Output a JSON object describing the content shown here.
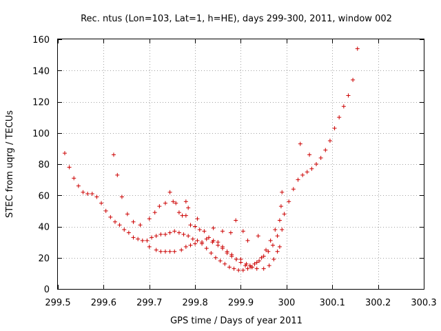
{
  "chart_data": {
    "type": "scatter",
    "title": "Rec. ntus (Lon=103, Lat=1, h=HE), days 299-300, 2011, window 002",
    "xlabel": "GPS time / Days of year 2011",
    "ylabel": "STEC from uqrg / TECUs",
    "xlim": [
      299.5,
      300.3
    ],
    "ylim": [
      0,
      160
    ],
    "xticks": [
      299.5,
      299.6,
      299.7,
      299.8,
      299.9,
      300,
      300.1,
      300.2,
      300.3
    ],
    "xtick_labels": [
      "299.5",
      "299.6",
      "299.7",
      "299.8",
      "299.9",
      "300",
      "300.1",
      "300.2",
      "300.3"
    ],
    "yticks": [
      0,
      20,
      40,
      60,
      80,
      100,
      120,
      140,
      160
    ],
    "ytick_labels": [
      "0",
      "20",
      "40",
      "60",
      "80",
      "100",
      "120",
      "140",
      "160"
    ],
    "grid": true,
    "marker": "+",
    "color": "#cc0000",
    "series": [
      {
        "name": "stec",
        "points": [
          [
            299.515,
            87
          ],
          [
            299.525,
            78
          ],
          [
            299.535,
            71
          ],
          [
            299.545,
            66
          ],
          [
            299.555,
            62
          ],
          [
            299.565,
            61
          ],
          [
            299.575,
            61
          ],
          [
            299.585,
            59
          ],
          [
            299.595,
            55
          ],
          [
            299.605,
            50
          ],
          [
            299.615,
            46
          ],
          [
            299.625,
            43
          ],
          [
            299.635,
            41
          ],
          [
            299.645,
            38
          ],
          [
            299.655,
            36
          ],
          [
            299.665,
            33
          ],
          [
            299.675,
            32
          ],
          [
            299.685,
            31
          ],
          [
            299.695,
            31
          ],
          [
            299.705,
            33
          ],
          [
            299.715,
            34
          ],
          [
            299.725,
            35
          ],
          [
            299.735,
            35
          ],
          [
            299.745,
            36
          ],
          [
            299.755,
            37
          ],
          [
            299.765,
            36
          ],
          [
            299.775,
            35
          ],
          [
            299.785,
            34
          ],
          [
            299.795,
            32
          ],
          [
            299.805,
            31
          ],
          [
            299.815,
            29
          ],
          [
            299.825,
            26
          ],
          [
            299.835,
            23
          ],
          [
            299.845,
            20
          ],
          [
            299.855,
            18
          ],
          [
            299.865,
            16
          ],
          [
            299.875,
            14
          ],
          [
            299.885,
            13
          ],
          [
            299.895,
            12
          ],
          [
            299.905,
            12
          ],
          [
            299.915,
            13
          ],
          [
            299.925,
            14
          ],
          [
            299.935,
            17
          ],
          [
            299.945,
            20
          ],
          [
            299.955,
            25
          ],
          [
            299.965,
            31
          ],
          [
            299.975,
            38
          ],
          [
            299.985,
            44
          ],
          [
            299.995,
            48
          ],
          [
            300.005,
            56
          ],
          [
            300.015,
            64
          ],
          [
            300.025,
            70
          ],
          [
            300.035,
            73
          ],
          [
            300.045,
            75
          ],
          [
            300.055,
            77
          ],
          [
            300.065,
            80
          ],
          [
            300.075,
            84
          ],
          [
            300.085,
            89
          ],
          [
            300.095,
            95
          ],
          [
            300.105,
            103
          ],
          [
            300.115,
            110
          ],
          [
            300.125,
            117
          ],
          [
            300.135,
            124
          ],
          [
            300.145,
            134
          ],
          [
            300.155,
            154
          ],
          [
            299.622,
            86
          ],
          [
            299.63,
            73
          ],
          [
            299.64,
            59
          ],
          [
            299.652,
            48
          ],
          [
            299.665,
            43
          ],
          [
            299.68,
            41
          ],
          [
            299.7,
            45
          ],
          [
            299.712,
            49
          ],
          [
            299.722,
            53
          ],
          [
            299.735,
            55
          ],
          [
            299.745,
            62
          ],
          [
            299.752,
            56
          ],
          [
            299.758,
            55
          ],
          [
            299.765,
            49
          ],
          [
            299.772,
            47
          ],
          [
            299.78,
            47
          ],
          [
            299.79,
            41
          ],
          [
            299.8,
            40
          ],
          [
            299.81,
            38
          ],
          [
            299.82,
            37
          ],
          [
            299.83,
            33
          ],
          [
            299.84,
            31
          ],
          [
            299.85,
            28
          ],
          [
            299.86,
            26
          ],
          [
            299.87,
            23
          ],
          [
            299.88,
            21
          ],
          [
            299.89,
            19
          ],
          [
            299.9,
            17
          ],
          [
            299.91,
            15
          ],
          [
            299.92,
            15
          ],
          [
            299.93,
            16
          ],
          [
            299.94,
            18
          ],
          [
            299.95,
            21
          ],
          [
            299.96,
            24
          ],
          [
            299.97,
            28
          ],
          [
            299.98,
            34
          ],
          [
            299.99,
            38
          ],
          [
            299.7,
            27
          ],
          [
            299.715,
            25
          ],
          [
            299.725,
            24
          ],
          [
            299.735,
            24
          ],
          [
            299.745,
            24
          ],
          [
            299.755,
            24
          ],
          [
            299.77,
            25
          ],
          [
            299.78,
            27
          ],
          [
            299.79,
            28
          ],
          [
            299.8,
            29
          ],
          [
            299.815,
            30
          ],
          [
            299.825,
            32
          ],
          [
            299.838,
            30
          ],
          [
            299.85,
            30
          ],
          [
            299.86,
            27
          ],
          [
            299.87,
            24
          ],
          [
            299.88,
            22
          ],
          [
            299.89,
            19
          ],
          [
            299.9,
            19
          ],
          [
            299.912,
            16
          ],
          [
            299.922,
            14
          ],
          [
            299.935,
            13
          ],
          [
            299.95,
            13
          ],
          [
            299.962,
            15
          ],
          [
            299.972,
            19
          ],
          [
            299.98,
            24
          ],
          [
            299.985,
            27
          ],
          [
            299.905,
            37
          ],
          [
            299.915,
            31
          ],
          [
            299.938,
            34
          ],
          [
            299.988,
            53
          ],
          [
            299.99,
            62
          ],
          [
            300.03,
            93
          ],
          [
            300.05,
            86
          ],
          [
            299.78,
            56
          ],
          [
            299.785,
            52
          ],
          [
            299.805,
            45
          ],
          [
            299.84,
            39
          ],
          [
            299.86,
            37
          ],
          [
            299.878,
            36
          ],
          [
            299.889,
            44
          ]
        ]
      }
    ]
  }
}
